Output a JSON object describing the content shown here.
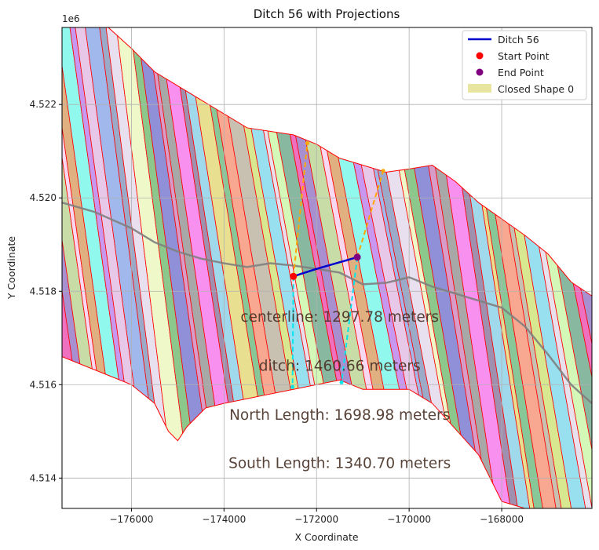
{
  "chart_data": {
    "type": "map",
    "title": "Ditch 56 with Projections",
    "xlabel": "X Coordinate",
    "ylabel": "Y Coordinate",
    "y_offset_label": "1e6",
    "xlim": [
      -177500,
      -166050
    ],
    "ylim": [
      4.51335,
      4.52365
    ],
    "x_ticks": [
      -176000,
      -174000,
      -172000,
      -170000,
      -168000
    ],
    "x_tick_labels": [
      "−176000",
      "−174000",
      "−172000",
      "−170000",
      "−168000"
    ],
    "y_ticks": [
      4.514,
      4.516,
      4.518,
      4.52,
      4.522
    ],
    "y_tick_labels": [
      "4.514",
      "4.516",
      "4.518",
      "4.520",
      "4.522"
    ],
    "grid": true,
    "legend_position": "upper right",
    "legend": [
      {
        "label": "Ditch 56",
        "kind": "line",
        "color": "#0000cc"
      },
      {
        "label": "Start Point",
        "kind": "marker",
        "color": "#ff0000"
      },
      {
        "label": "End Point",
        "kind": "marker",
        "color": "#800080"
      },
      {
        "label": "Closed Shape 0",
        "kind": "patch",
        "color": "#e0dc80"
      }
    ],
    "ditch": {
      "x": [
        -172500,
        -172000,
        -171120
      ],
      "y": [
        4.51832,
        4.51848,
        4.51873
      ],
      "color": "#0000cc"
    },
    "start_point": {
      "x": -172500,
      "y": 4.51832,
      "color": "#ff0000"
    },
    "end_point": {
      "x": -171120,
      "y": 4.51873,
      "color": "#800080"
    },
    "north_projection": {
      "x": [
        -172500,
        -172200
      ],
      "y": [
        4.51832,
        4.52117
      ],
      "color": "#ffa500"
    },
    "north_projection_2": {
      "x": [
        -171120,
        -170560
      ],
      "y": [
        4.51873,
        4.52058
      ],
      "color": "#ffa500"
    },
    "south_projection": {
      "x": [
        -172500,
        -172520
      ],
      "y": [
        4.51832,
        4.51595
      ],
      "color": "#00e5ee"
    },
    "south_projection_2": {
      "x": [
        -171120,
        -171460
      ],
      "y": [
        4.51873,
        4.51605
      ],
      "color": "#00e5ee"
    },
    "centerline": {
      "color": "#808080",
      "x": [
        -177500,
        -176800,
        -176000,
        -175500,
        -175000,
        -174500,
        -174000,
        -173500,
        -173000,
        -172500,
        -172000,
        -171500,
        -171000,
        -170500,
        -170000,
        -169500,
        -169000,
        -168500,
        -168000,
        -167500,
        -167000,
        -166500,
        -166050
      ],
      "y": [
        4.5199,
        4.5197,
        4.51935,
        4.51905,
        4.51885,
        4.5187,
        4.5186,
        4.51852,
        4.5186,
        4.51855,
        4.51848,
        4.5184,
        4.51815,
        4.51818,
        4.5183,
        4.5181,
        4.51795,
        4.5178,
        4.51765,
        4.51725,
        4.51665,
        4.516,
        4.5156
      ]
    },
    "boundary": {
      "stroke": "#ff0000",
      "top_x": [
        -177500,
        -176500,
        -176000,
        -175500,
        -174500,
        -173500,
        -172500,
        -172000,
        -171500,
        -170500,
        -170000,
        -169500,
        -169000,
        -168500,
        -168000,
        -167500,
        -167000,
        -166500,
        -166050
      ],
      "top_y": [
        4.52365,
        4.52365,
        4.5232,
        4.5227,
        4.5221,
        4.5215,
        4.52135,
        4.52115,
        4.52085,
        4.52055,
        4.52062,
        4.5207,
        4.52035,
        4.5199,
        4.51955,
        4.5192,
        4.5188,
        4.5182,
        4.5179
      ],
      "bottom_x": [
        -166050,
        -167500,
        -168000,
        -168500,
        -169500,
        -170000,
        -171000,
        -171500,
        -172000,
        -172500,
        -173000,
        -173500,
        -174000,
        -174400,
        -174800,
        -175000,
        -175200,
        -175500,
        -176000,
        -176500,
        -177000,
        -177500
      ],
      "bottom_y": [
        4.51335,
        4.51335,
        4.5135,
        4.5145,
        4.5156,
        4.5159,
        4.5159,
        4.5161,
        4.516,
        4.5159,
        4.5158,
        4.5157,
        4.5156,
        4.5155,
        4.5151,
        4.5148,
        4.515,
        4.5156,
        4.516,
        4.5162,
        4.5164,
        4.5166
      ]
    },
    "parcel_colors": [
      "#9aaac8",
      "#e8e0ee",
      "#eef8c8",
      "#8cc88c",
      "#9090d8",
      "#d89cc8",
      "#a8a8a8",
      "#f890f0",
      "#a090b0",
      "#a0d8ec",
      "#e8e090",
      "#88c898",
      "#f8a890",
      "#c8c0b0",
      "#d8e890",
      "#98e0f0",
      "#e8e0ec",
      "#d4f8b8",
      "#88b8a0",
      "#f070c0",
      "#a890d0",
      "#c8dca8",
      "#f8d8f0",
      "#e0b080",
      "#90f8ec",
      "#c898f0",
      "#e8c8e8",
      "#a0b8ec"
    ],
    "annotations": [
      {
        "text": "centerline: 1297.78 meters",
        "x": -171500,
        "y": 4.51745
      },
      {
        "text": "ditch: 1460.66 meters",
        "x": -171500,
        "y": 4.5164
      },
      {
        "text": "North Length: 1698.98 meters",
        "x": -171500,
        "y": 4.51535
      },
      {
        "text": "South Length: 1340.70 meters",
        "x": -171500,
        "y": 4.51432
      }
    ]
  }
}
